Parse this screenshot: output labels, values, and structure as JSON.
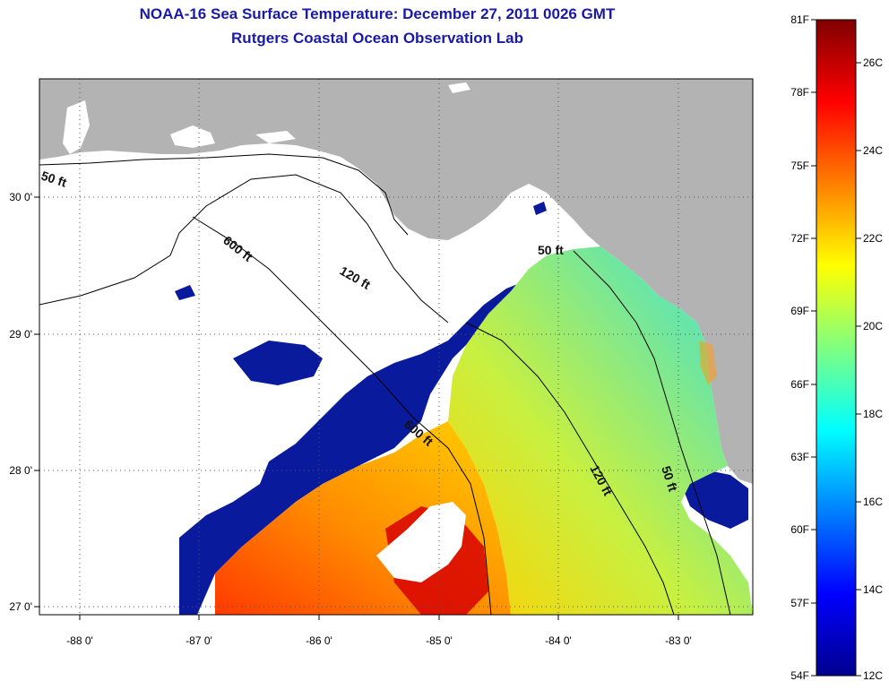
{
  "header": {
    "title": "NOAA-16 Sea Surface Temperature:  December 27, 2011 0026 GMT",
    "subtitle": "Rutgers Coastal Ocean Observation Lab"
  },
  "map": {
    "lon_ticks": [
      "-88 0'",
      "-87 0'",
      "-86 0'",
      "-85 0'",
      "-84 0'",
      "-83 0'"
    ],
    "lat_ticks": [
      "30 0'",
      "29 0'",
      "28 0'",
      "27 0'"
    ],
    "contour_labels": [
      "50 ft",
      "600 ft",
      "120 ft",
      "50 ft",
      "600 ft",
      "120 ft",
      "50 ft"
    ],
    "colors": {
      "land": "#b3b3b3",
      "cloud": "#ffffff",
      "cold": "#0a1a9c"
    }
  },
  "colorbar": {
    "f_labels": [
      "81F",
      "78F",
      "75F",
      "72F",
      "69F",
      "66F",
      "63F",
      "60F",
      "57F",
      "54F"
    ],
    "c_labels": [
      "26C",
      "24C",
      "22C",
      "20C",
      "18C",
      "16C",
      "14C",
      "12C"
    ]
  }
}
